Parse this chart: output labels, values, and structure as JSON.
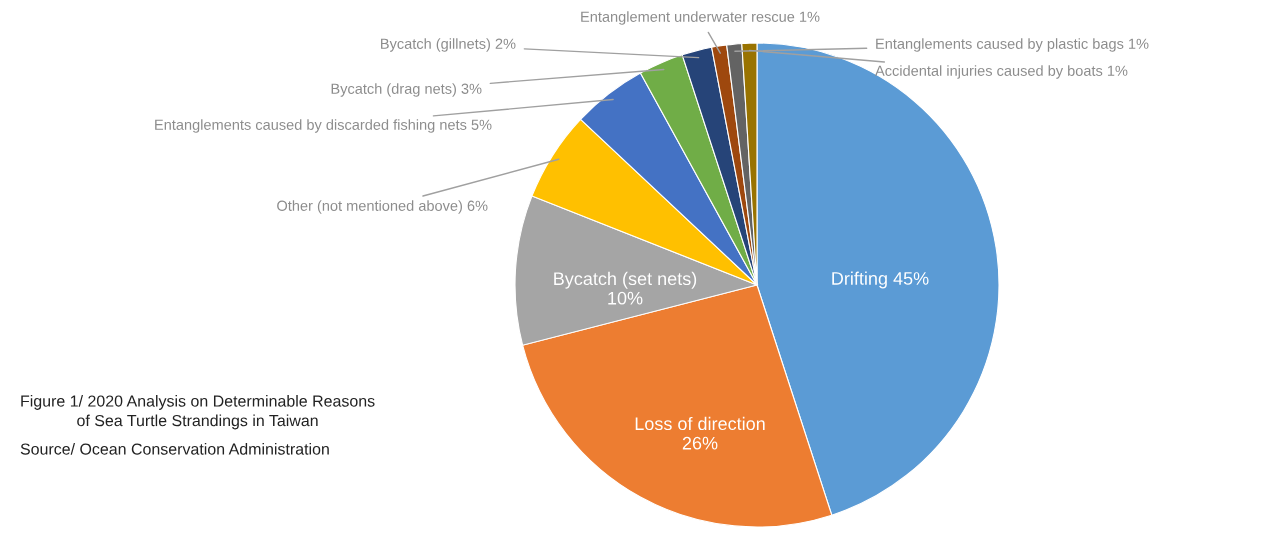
{
  "chart_data": {
    "type": "pie",
    "title": "Figure 1/ 2020 Analysis on Determinable Reasons\nof Sea Turtle Strandings in Taiwan",
    "annotations": [
      "Source/ Ocean Conservation Administration"
    ],
    "categories": [
      "Drifting",
      "Loss of direction",
      "Bycatch (set nets)",
      "Other (not mentioned above)",
      "Entanglements caused by discarded fishing nets",
      "Bycatch (drag nets)",
      "Bycatch (gillnets)",
      "Entanglement underwater rescue",
      "Entanglements caused by plastic bags",
      "Accidental injuries caused by boats"
    ],
    "values": [
      45,
      26,
      10,
      6,
      5,
      3,
      2,
      1,
      1,
      1
    ],
    "colors": [
      "#5b9bd5",
      "#ed7d31",
      "#a5a5a5",
      "#ffc000",
      "#4472c4",
      "#70ad47",
      "#264478",
      "#9e480e",
      "#636363",
      "#997300"
    ],
    "value_labels": [
      "45%",
      "26%",
      "10%",
      "6%",
      "5%",
      "3%",
      "2%",
      "1%",
      "1%",
      "1%"
    ]
  }
}
